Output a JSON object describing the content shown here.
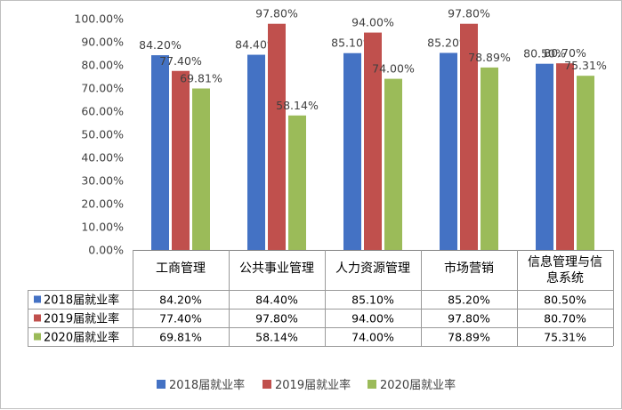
{
  "chart_data": {
    "type": "bar",
    "categories": [
      [
        "工商管理"
      ],
      [
        "公共事业管理"
      ],
      [
        "人力资源管理"
      ],
      [
        "市场营销"
      ],
      [
        "信息管理与信",
        "息系统"
      ]
    ],
    "series": [
      {
        "name": "2018届就业率",
        "color": "#4472C4",
        "values": [
          84.2,
          84.4,
          85.1,
          85.2,
          80.5
        ],
        "labels": [
          "84.20%",
          "84.40%",
          "85.10%",
          "85.20%",
          "80.50%"
        ]
      },
      {
        "name": "2019届就业率",
        "color": "#C0504D",
        "values": [
          77.4,
          97.8,
          94.0,
          97.8,
          80.7
        ],
        "labels": [
          "77.40%",
          "97.80%",
          "94.00%",
          "97.80%",
          "80.70%"
        ]
      },
      {
        "name": "2020届就业率",
        "color": "#9BBB59",
        "values": [
          69.81,
          58.14,
          74.0,
          78.89,
          75.31
        ],
        "labels": [
          "69.81%",
          "58.14%",
          "74.00%",
          "78.89%",
          "75.31%"
        ]
      }
    ],
    "yticks": [
      "0.00%",
      "10.00%",
      "20.00%",
      "30.00%",
      "40.00%",
      "50.00%",
      "60.00%",
      "70.00%",
      "80.00%",
      "90.00%",
      "100.00%"
    ],
    "ylim": [
      0,
      100
    ],
    "data_table": true,
    "legend_position": "bottom",
    "grid": false
  }
}
